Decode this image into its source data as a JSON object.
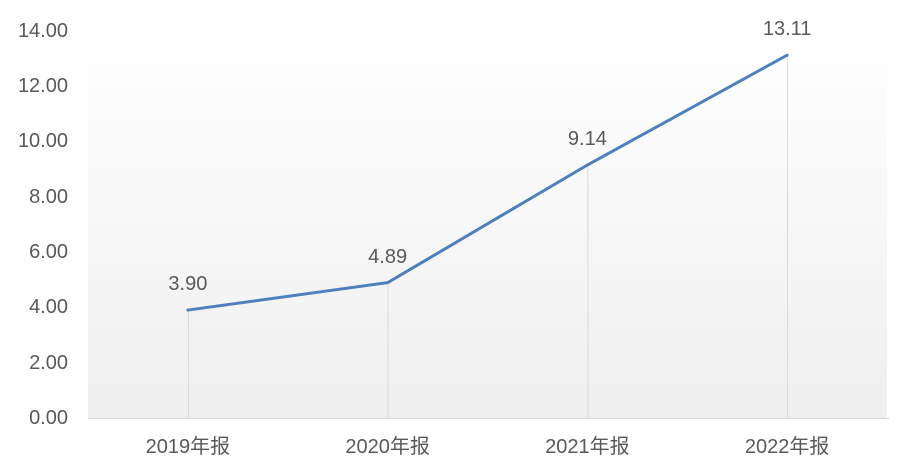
{
  "chart_data": {
    "type": "line",
    "title": "",
    "xlabel": "",
    "ylabel": "",
    "categories": [
      "2019年报",
      "2020年报",
      "2021年报",
      "2022年报"
    ],
    "values": [
      3.9,
      4.89,
      9.14,
      13.11
    ],
    "data_labels": [
      "3.90",
      "4.89",
      "9.14",
      "13.11"
    ],
    "data_label_position": "above",
    "y_tick_labels": [
      "0.00",
      "2.00",
      "4.00",
      "6.00",
      "8.00",
      "10.00",
      "12.00",
      "14.00"
    ],
    "y_tick_values": [
      0,
      2,
      4,
      6,
      8,
      10,
      12,
      14
    ],
    "ylim": [
      0,
      14
    ],
    "grid": false,
    "legend": "none",
    "drop_lines": true,
    "colors": {
      "series_line": "#4e80bd",
      "drop_line": "#d9d9d9",
      "axis_line": "#d9d9d9",
      "text": "#595959",
      "plot_bg_top": "#ffffff",
      "plot_bg_bottom": "#efefef",
      "page_bg": "#ffffff"
    }
  }
}
